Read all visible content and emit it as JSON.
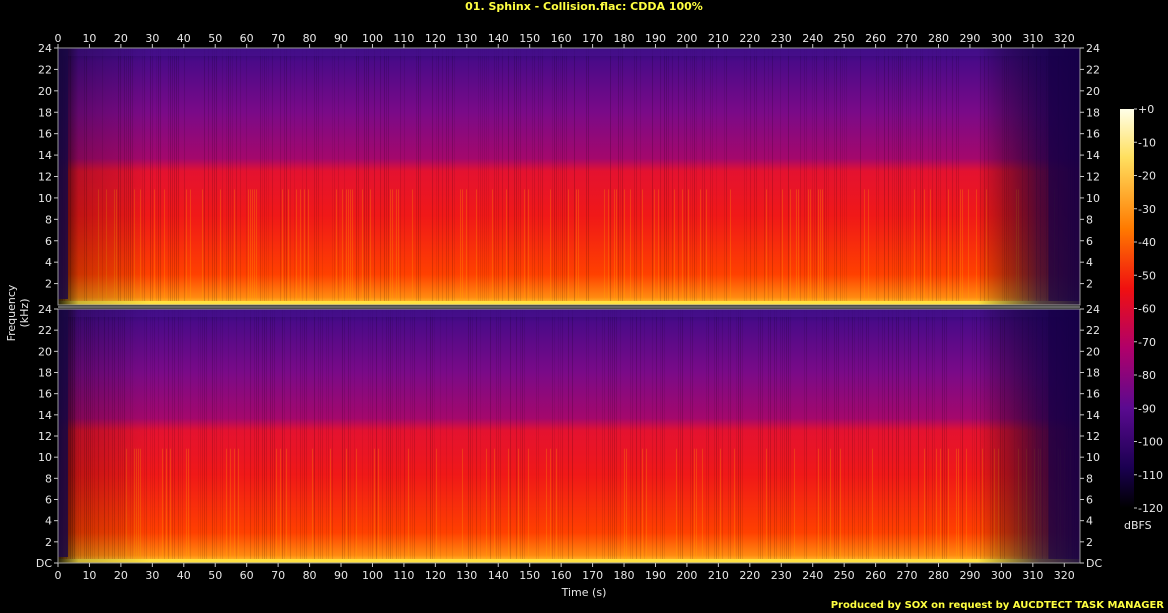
{
  "title": "01. Sphinx - Collision.flac: CDDA 100%",
  "footer": "Produced by SOX on request by AUCDTECT TASK MANAGER",
  "chart_data": {
    "type": "heatmap",
    "xlabel": "Time (s)",
    "ylabel": "Frequency (kHz)",
    "colorbar_label": "dBFS",
    "xlim": [
      0,
      325
    ],
    "ylim": [
      0,
      24
    ],
    "x_ticks": [
      0,
      10,
      20,
      30,
      40,
      50,
      60,
      70,
      80,
      90,
      100,
      110,
      120,
      130,
      140,
      150,
      160,
      170,
      180,
      190,
      200,
      210,
      220,
      230,
      240,
      250,
      260,
      270,
      280,
      290,
      300,
      310,
      320
    ],
    "y_ticks": [
      2,
      4,
      6,
      8,
      10,
      12,
      14,
      16,
      18,
      20,
      22,
      24
    ],
    "y_tick_labels_lower": [
      "DC",
      "2",
      "4",
      "6",
      "8",
      "10",
      "12",
      "14",
      "16",
      "18",
      "20",
      "22",
      "24"
    ],
    "y_tick_labels_upper": [
      "2",
      "4",
      "6",
      "8",
      "10",
      "12",
      "14",
      "16",
      "18",
      "20",
      "22",
      "24"
    ],
    "colorbar_ticks": [
      0,
      -10,
      -20,
      -30,
      -40,
      -50,
      -60,
      -70,
      -80,
      -90,
      -100,
      -110,
      -120
    ],
    "colorbar_tick_labels": [
      "+0",
      "-10",
      "-20",
      "-30",
      "-40",
      "-50",
      "-60",
      "-70",
      "-80",
      "-90",
      "-100",
      "-110",
      "-120"
    ],
    "channels": 2,
    "colors": {
      "high": "#ffffe0",
      "mid": "#ff2a00",
      "low_mid": "#b0006a",
      "low": "#3a0a78",
      "floor": "#000010"
    }
  }
}
